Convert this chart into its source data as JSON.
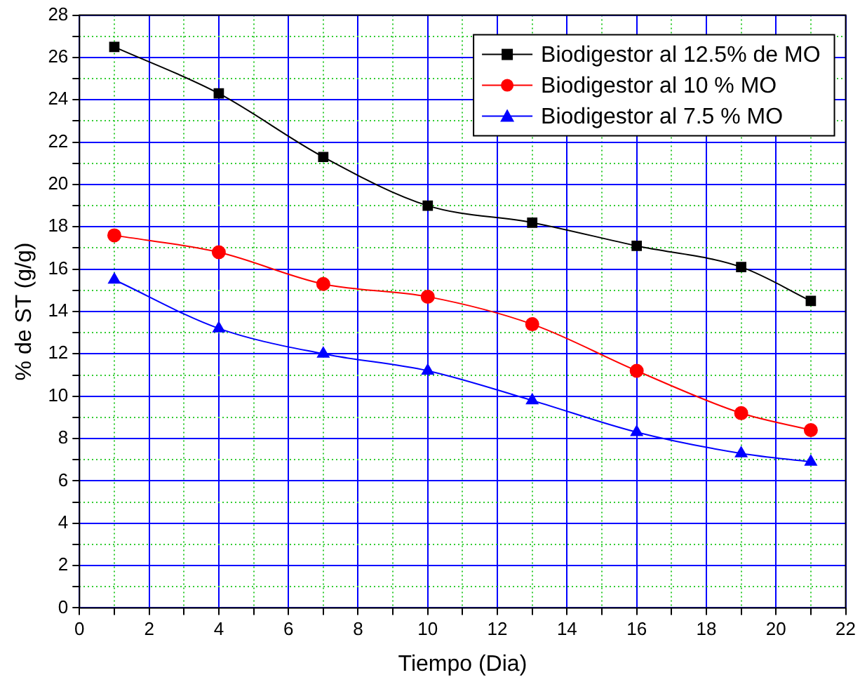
{
  "chart_data": {
    "type": "line",
    "xlabel": "Tiempo (Dia)",
    "ylabel": "% de ST (g/g)",
    "x": [
      1,
      4,
      7,
      10,
      13,
      16,
      19,
      21
    ],
    "series": [
      {
        "name": "Biodigestor al 12.5% de MO",
        "color": "#000000",
        "marker": "square",
        "values": [
          26.5,
          24.3,
          21.3,
          19.0,
          18.2,
          17.1,
          16.1,
          14.5
        ]
      },
      {
        "name": "Biodigestor al 10 % MO",
        "color": "#ff0000",
        "marker": "circle",
        "values": [
          17.6,
          16.8,
          15.3,
          14.7,
          13.4,
          11.2,
          9.2,
          8.4
        ]
      },
      {
        "name": "Biodigestor al 7.5 % MO",
        "color": "#0000ff",
        "marker": "triangle",
        "values": [
          15.5,
          13.2,
          12.0,
          11.2,
          9.8,
          8.3,
          7.3,
          6.9
        ]
      }
    ],
    "xlim": [
      0,
      22
    ],
    "xticks": [
      0,
      {
        "value": 1,
        "label": null
      },
      2,
      {
        "value": 3,
        "label": null
      },
      4,
      {
        "value": 5,
        "label": null
      },
      6,
      {
        "value": 7,
        "label": null
      },
      8,
      {
        "value": 9,
        "label": null
      },
      10,
      {
        "value": 11,
        "label": null
      },
      12,
      {
        "value": 13,
        "label": null
      },
      14,
      {
        "value": 15,
        "label": null
      },
      16,
      {
        "value": 17,
        "label": null
      },
      18,
      {
        "value": 19,
        "label": null
      },
      20,
      {
        "value": 21,
        "label": null
      },
      22
    ],
    "ylim": [
      0,
      28
    ],
    "yticks": [
      0,
      {
        "value": 1,
        "label": null
      },
      2,
      {
        "value": 3,
        "label": null
      },
      4,
      {
        "value": 5,
        "label": null
      },
      6,
      {
        "value": 7,
        "label": null
      },
      8,
      {
        "value": 9,
        "label": null
      },
      10,
      {
        "value": 11,
        "label": null
      },
      12,
      {
        "value": 13,
        "label": null
      },
      14,
      {
        "value": 15,
        "label": null
      },
      16,
      {
        "value": 17,
        "label": null
      },
      18,
      {
        "value": 19,
        "label": null
      },
      20,
      {
        "value": 21,
        "label": null
      },
      22,
      {
        "value": 23,
        "label": null
      },
      24,
      {
        "value": 25,
        "label": null
      },
      26,
      {
        "value": 27,
        "label": null
      },
      28
    ],
    "grid": true,
    "legend": "top right",
    "line_style": "solid"
  }
}
